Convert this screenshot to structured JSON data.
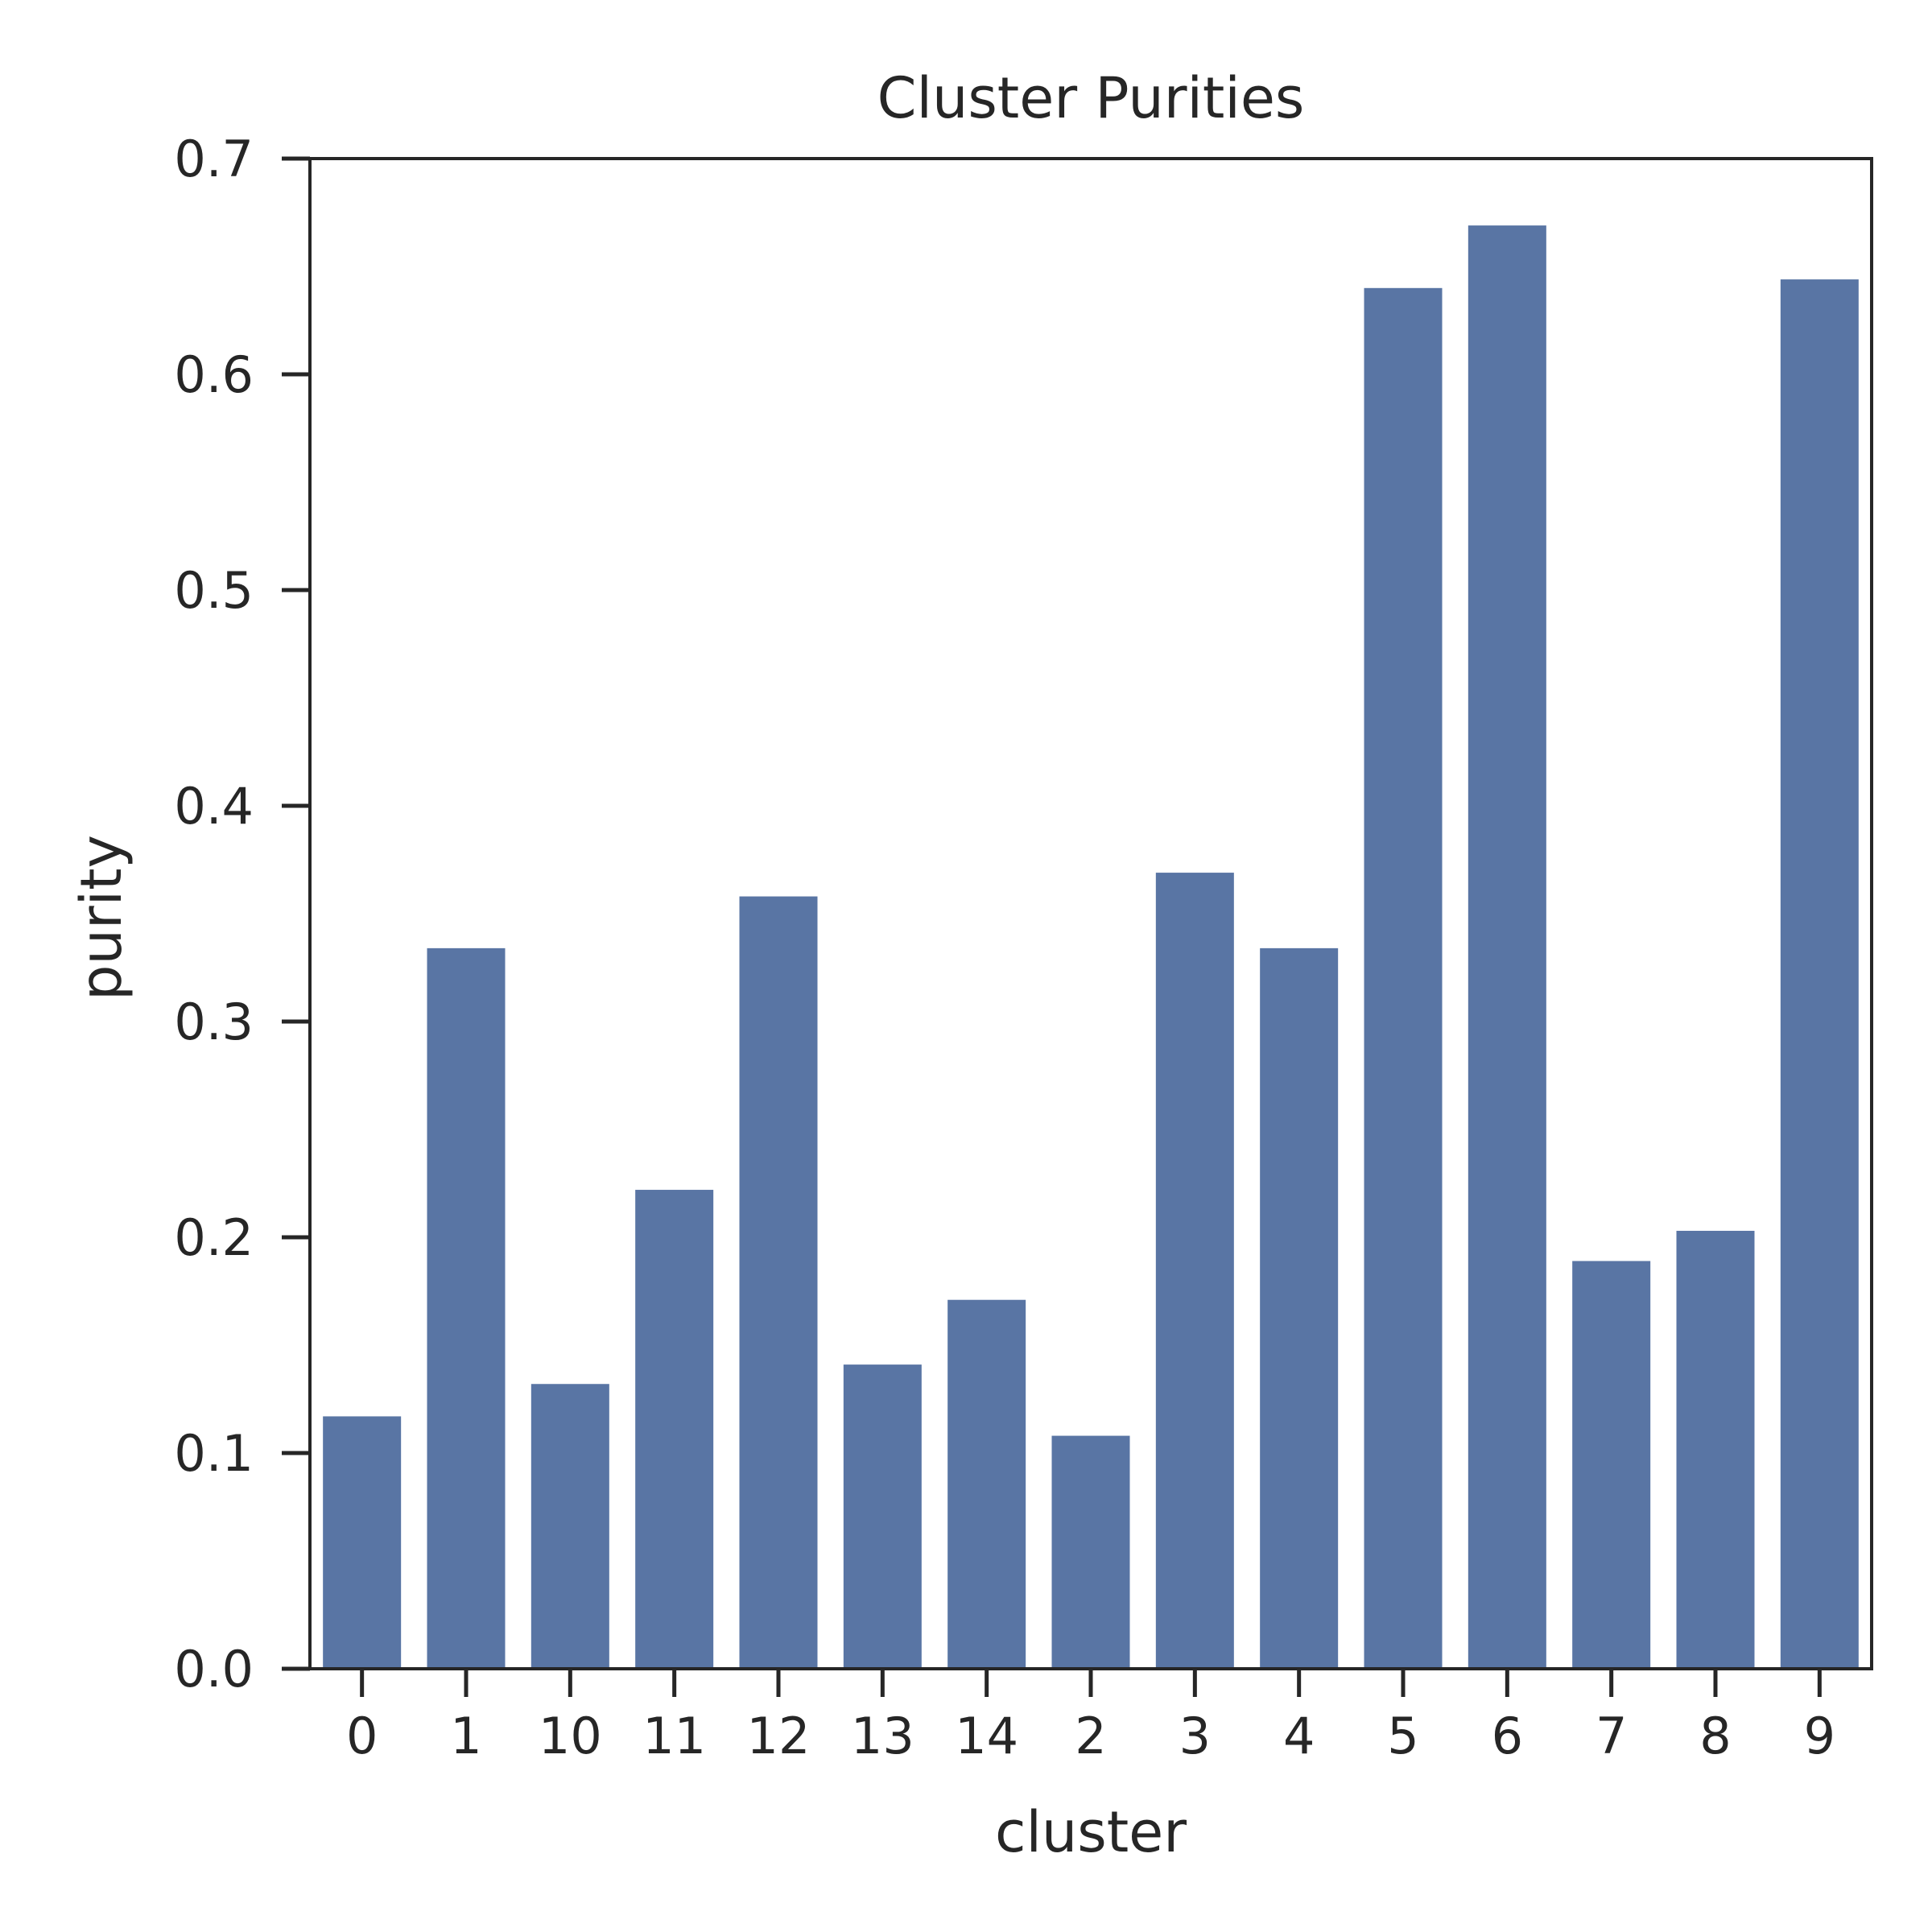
{
  "chart_data": {
    "type": "bar",
    "title": "Cluster Purities",
    "xlabel": "cluster",
    "ylabel": "purity",
    "categories": [
      "0",
      "1",
      "10",
      "11",
      "12",
      "13",
      "14",
      "2",
      "3",
      "4",
      "5",
      "6",
      "7",
      "8",
      "9"
    ],
    "values": [
      0.117,
      0.334,
      0.132,
      0.222,
      0.358,
      0.141,
      0.171,
      0.108,
      0.369,
      0.334,
      0.64,
      0.669,
      0.189,
      0.203,
      0.644
    ],
    "ylim": [
      0,
      0.7
    ],
    "yticks": [
      "0.0",
      "0.1",
      "0.2",
      "0.3",
      "0.4",
      "0.5",
      "0.6",
      "0.7"
    ],
    "bar_color": "#5975a4",
    "grid": false
  }
}
